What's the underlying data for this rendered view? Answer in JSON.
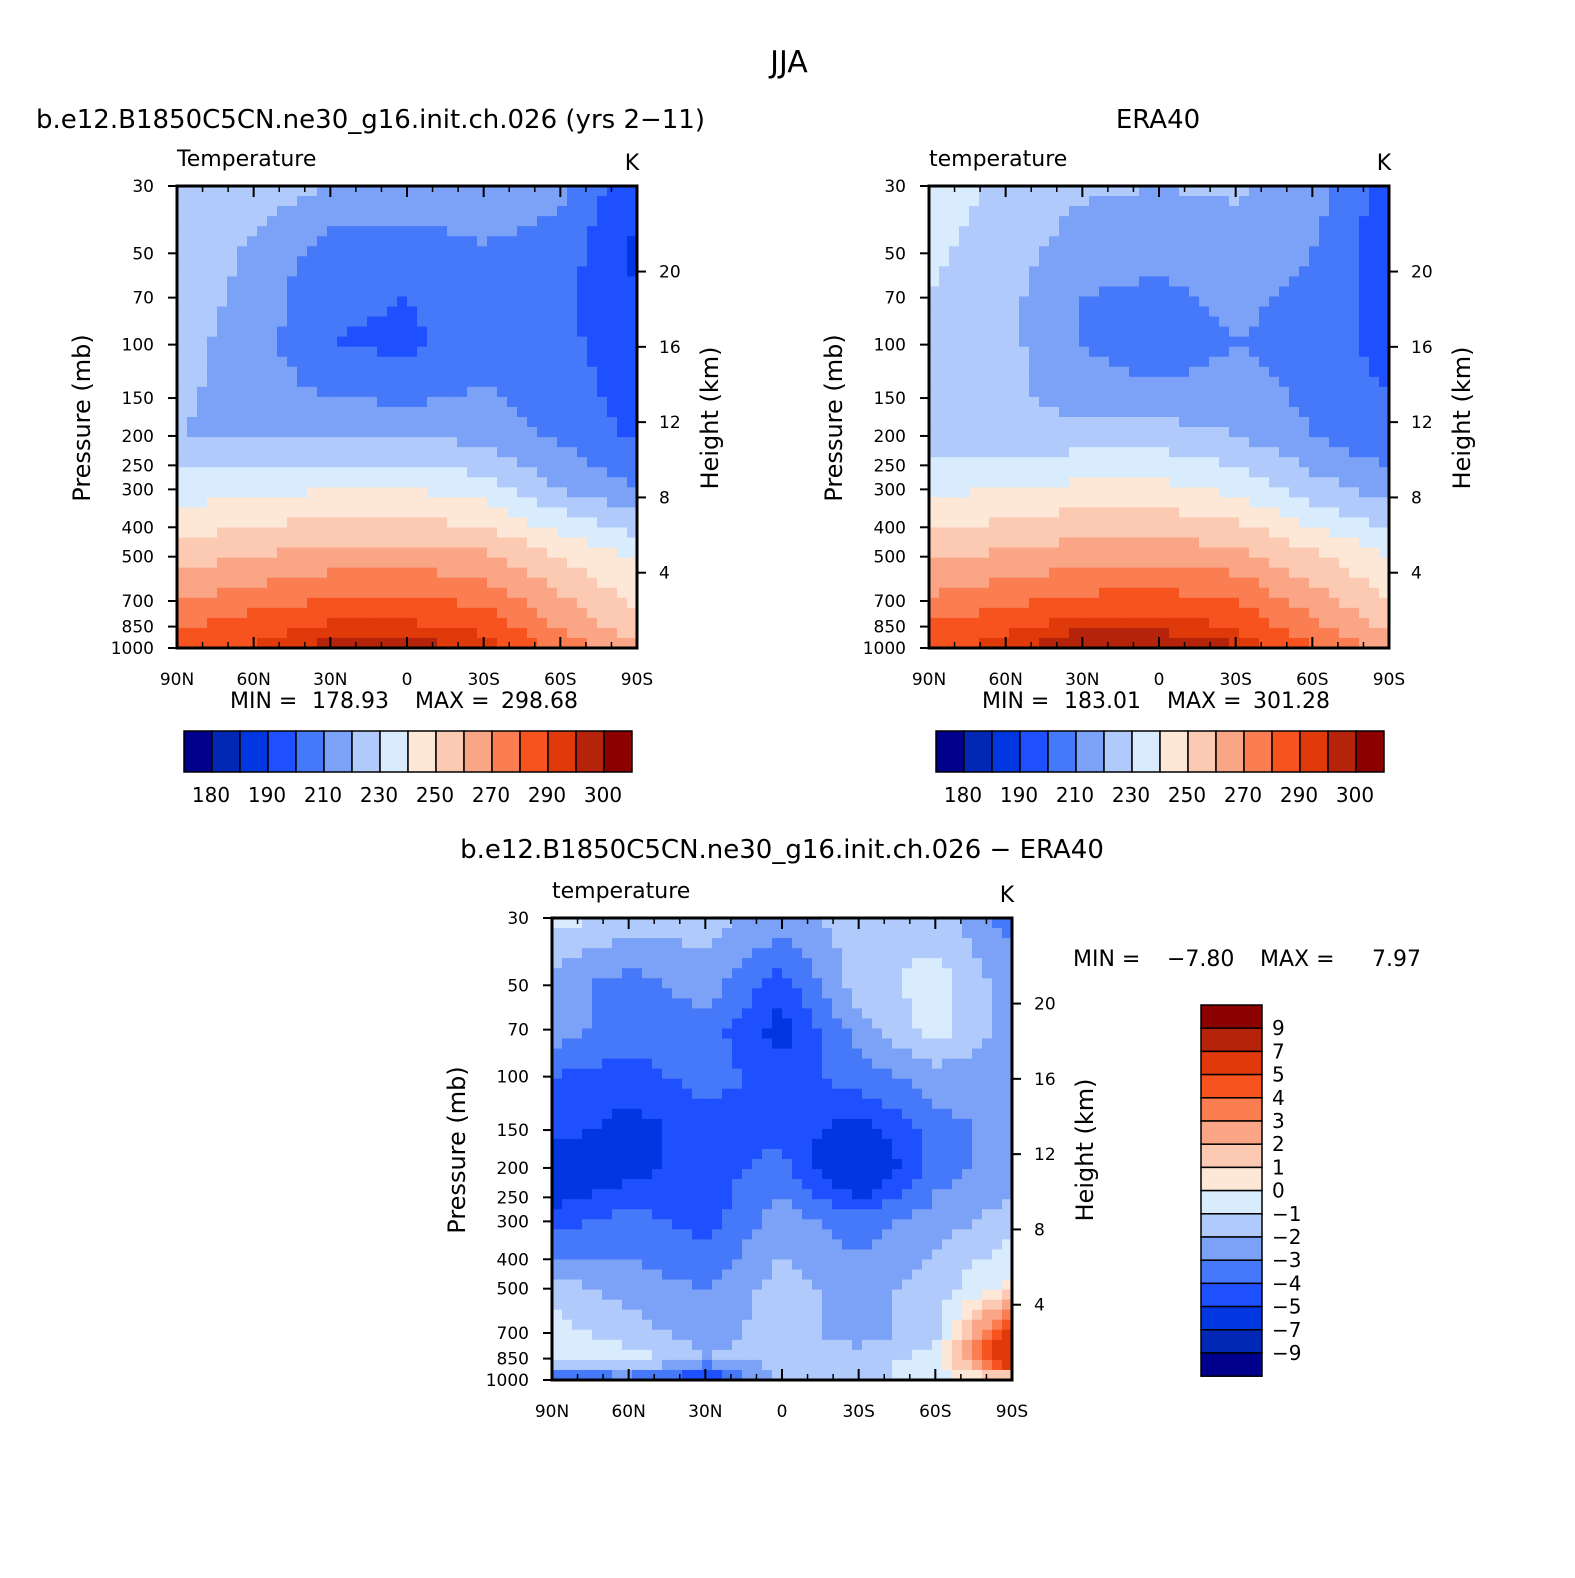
{
  "title": "JJA",
  "diff_title": "b.e12.B1850C5CN.ne30_g16.init.ch.026 − ERA40",
  "panels": [
    {
      "id": "model",
      "title": "b.e12.B1850C5CN.ne30_g16.init.ch.026 (yrs 2−11)",
      "var_label": "Temperature",
      "units": "K",
      "stats": {
        "min": "178.93",
        "max": "298.68",
        "min_label": "MIN =",
        "max_label": "MAX ="
      }
    },
    {
      "id": "obs",
      "title": "ERA40",
      "var_label": "temperature",
      "units": "K",
      "stats": {
        "min": "183.01",
        "max": "301.28",
        "min_label": "MIN =",
        "max_label": "MAX ="
      }
    },
    {
      "id": "diff",
      "title": "",
      "var_label": "temperature",
      "units": "K",
      "stats": {
        "min": "−7.80",
        "max": "7.97",
        "min_label": "MIN =",
        "max_label": "MAX ="
      }
    }
  ],
  "axes": {
    "x_ticks": [
      "90N",
      "60N",
      "30N",
      "0",
      "30S",
      "60S",
      "90S"
    ],
    "y_label": "Pressure (mb)",
    "y_ticks": [
      "30",
      "50",
      "70",
      "100",
      "150",
      "200",
      "250",
      "300",
      "400",
      "500",
      "700",
      "850",
      "1000"
    ],
    "y2_label": "Height (km)",
    "y2_ticks": [
      "20",
      "16",
      "12",
      "8",
      "4"
    ]
  },
  "abs_colorbar": {
    "labels": [
      "180",
      "190",
      "210",
      "230",
      "250",
      "270",
      "290",
      "300"
    ],
    "colors": [
      "#00008c",
      "#0028b4",
      "#0037e0",
      "#1e50ff",
      "#4678fa",
      "#7ba2f7",
      "#b0cbfb",
      "#d8ecfd",
      "#fde8d8",
      "#fccab3",
      "#faa585",
      "#fa7e51",
      "#f7531f",
      "#e03a0a",
      "#b4230a",
      "#8c0000"
    ]
  },
  "diff_colorbar": {
    "labels": [
      "9",
      "7",
      "5",
      "4",
      "3",
      "2",
      "1",
      "0",
      "−1",
      "−2",
      "−3",
      "−4",
      "−5",
      "−7",
      "−9"
    ],
    "colors": [
      "#8c0000",
      "#b4230a",
      "#e03a0a",
      "#f7531f",
      "#fa7e51",
      "#faa585",
      "#fccab3",
      "#fde8d8",
      "#d8ecfd",
      "#b0cbfb",
      "#7ba2f7",
      "#4678fa",
      "#1e50ff",
      "#0037e0",
      "#0028b4",
      "#00008c"
    ]
  },
  "chart_data": [
    {
      "type": "heatmap",
      "title": "b.e12.B1850C5CN.ne30_g16.init.ch.026 (yrs 2−11)",
      "xlabel": "",
      "ylabel": "Pressure (mb)",
      "x": [
        "90N",
        "60N",
        "30N",
        "0",
        "30S",
        "60S",
        "90S"
      ],
      "y": [
        30,
        50,
        70,
        100,
        150,
        200,
        300,
        500,
        700,
        850,
        1000
      ],
      "values": [
        [
          230,
          225,
          220,
          218,
          220,
          212,
          192
        ],
        [
          228,
          218,
          205,
          203,
          208,
          205,
          188
        ],
        [
          226,
          216,
          202,
          200,
          205,
          203,
          190
        ],
        [
          224,
          215,
          200,
          198,
          205,
          203,
          193
        ],
        [
          222,
          215,
          210,
          208,
          212,
          205,
          196
        ],
        [
          220,
          218,
          220,
          220,
          217,
          208,
          198
        ],
        [
          235,
          237,
          240,
          240,
          235,
          220,
          210
        ],
        [
          256,
          260,
          264,
          265,
          262,
          250,
          238
        ],
        [
          270,
          276,
          281,
          282,
          278,
          262,
          248
        ],
        [
          279,
          286,
          292,
          292,
          288,
          268,
          255
        ],
        [
          285,
          291,
          298,
          298,
          294,
          278,
          262
        ]
      ],
      "zlim": [
        178.93,
        298.68
      ],
      "units": "K"
    },
    {
      "type": "heatmap",
      "title": "ERA40",
      "xlabel": "",
      "ylabel": "Pressure (mb)",
      "x": [
        "90N",
        "60N",
        "30N",
        "0",
        "30S",
        "60S",
        "90S"
      ],
      "y": [
        30,
        50,
        70,
        100,
        150,
        200,
        300,
        500,
        700,
        850,
        1000
      ],
      "values": [
        [
          235,
          228,
          222,
          220,
          222,
          215,
          196
        ],
        [
          232,
          225,
          214,
          212,
          214,
          210,
          192
        ],
        [
          230,
          223,
          210,
          208,
          212,
          208,
          194
        ],
        [
          230,
          223,
          210,
          203,
          210,
          206,
          196
        ],
        [
          230,
          223,
          215,
          213,
          215,
          208,
          200
        ],
        [
          225,
          222,
          225,
          225,
          220,
          210,
          202
        ],
        [
          238,
          240,
          243,
          243,
          238,
          225,
          215
        ],
        [
          258,
          262,
          266,
          267,
          264,
          252,
          240
        ],
        [
          272,
          278,
          283,
          284,
          280,
          265,
          250
        ],
        [
          281,
          288,
          294,
          294,
          290,
          272,
          258
        ],
        [
          288,
          293,
          301,
          300,
          296,
          282,
          265
        ]
      ],
      "zlim": [
        183.01,
        301.28
      ],
      "units": "K"
    },
    {
      "type": "heatmap",
      "title": "b.e12.B1850C5CN.ne30_g16.init.ch.026 − ERA40",
      "xlabel": "",
      "ylabel": "Pressure (mb)",
      "x": [
        "90N",
        "60N",
        "30N",
        "0",
        "30S",
        "60S",
        "90S"
      ],
      "y": [
        30,
        50,
        70,
        100,
        150,
        200,
        300,
        500,
        700,
        850,
        1000
      ],
      "values": [
        [
          -0.5,
          -1.5,
          -1.5,
          -2.5,
          -1.5,
          -1.5,
          -3.5
        ],
        [
          -2.5,
          -3.5,
          -2.5,
          -4.5,
          -1.5,
          -0.5,
          -2.5
        ],
        [
          -2.5,
          -3.5,
          -3.5,
          -5.5,
          -2.5,
          -0.5,
          -2.5
        ],
        [
          -4.0,
          -4.5,
          -3.5,
          -4.5,
          -3.5,
          -2.5,
          -2.5
        ],
        [
          -4.5,
          -5.5,
          -4.5,
          -4.5,
          -5.5,
          -3.5,
          -2.5
        ],
        [
          -6.5,
          -5.5,
          -4.5,
          -3.5,
          -7.0,
          -3.5,
          -2.5
        ],
        [
          -4.5,
          -3.5,
          -4.5,
          -2.5,
          -3.5,
          -2.5,
          -1.5
        ],
        [
          -1.5,
          -2.5,
          -3.0,
          -1.5,
          -2.5,
          -1.5,
          0.5
        ],
        [
          -0.5,
          -1.5,
          -2.5,
          -1.5,
          -2.5,
          -1.5,
          6.0
        ],
        [
          -0.5,
          -0.5,
          -2.0,
          -1.5,
          -1.5,
          -0.5,
          7.5
        ],
        [
          -4.5,
          -3.5,
          -5.5,
          -1.5,
          -1.5,
          -0.5,
          0.5
        ]
      ],
      "zlim": [
        -7.8,
        7.97
      ],
      "units": "K"
    }
  ]
}
